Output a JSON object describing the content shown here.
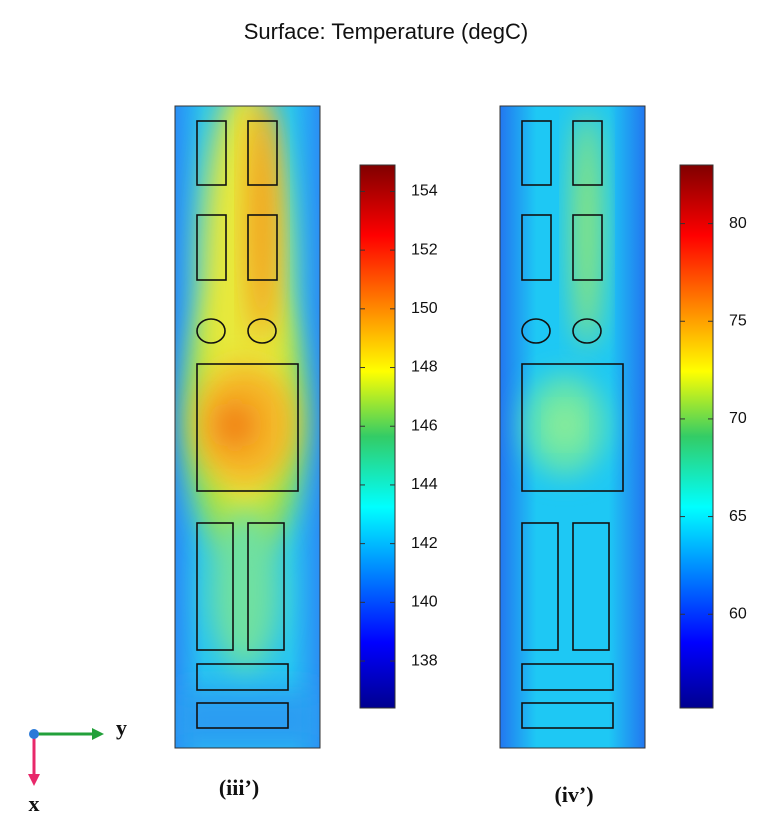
{
  "chart_data": [
    {
      "type": "heatmap",
      "title": "Surface: Temperature (degC)",
      "label": "(iii’)",
      "clim": [
        136.4,
        154.9
      ],
      "cticks": [
        138,
        140,
        142,
        144,
        146,
        148,
        150,
        152,
        154
      ]
    },
    {
      "type": "heatmap",
      "label": "(iv’)",
      "clim": [
        55.2,
        83.0
      ],
      "cticks": [
        60,
        65,
        70,
        75,
        80
      ]
    }
  ],
  "triad": {
    "x": "x",
    "y": "y"
  }
}
